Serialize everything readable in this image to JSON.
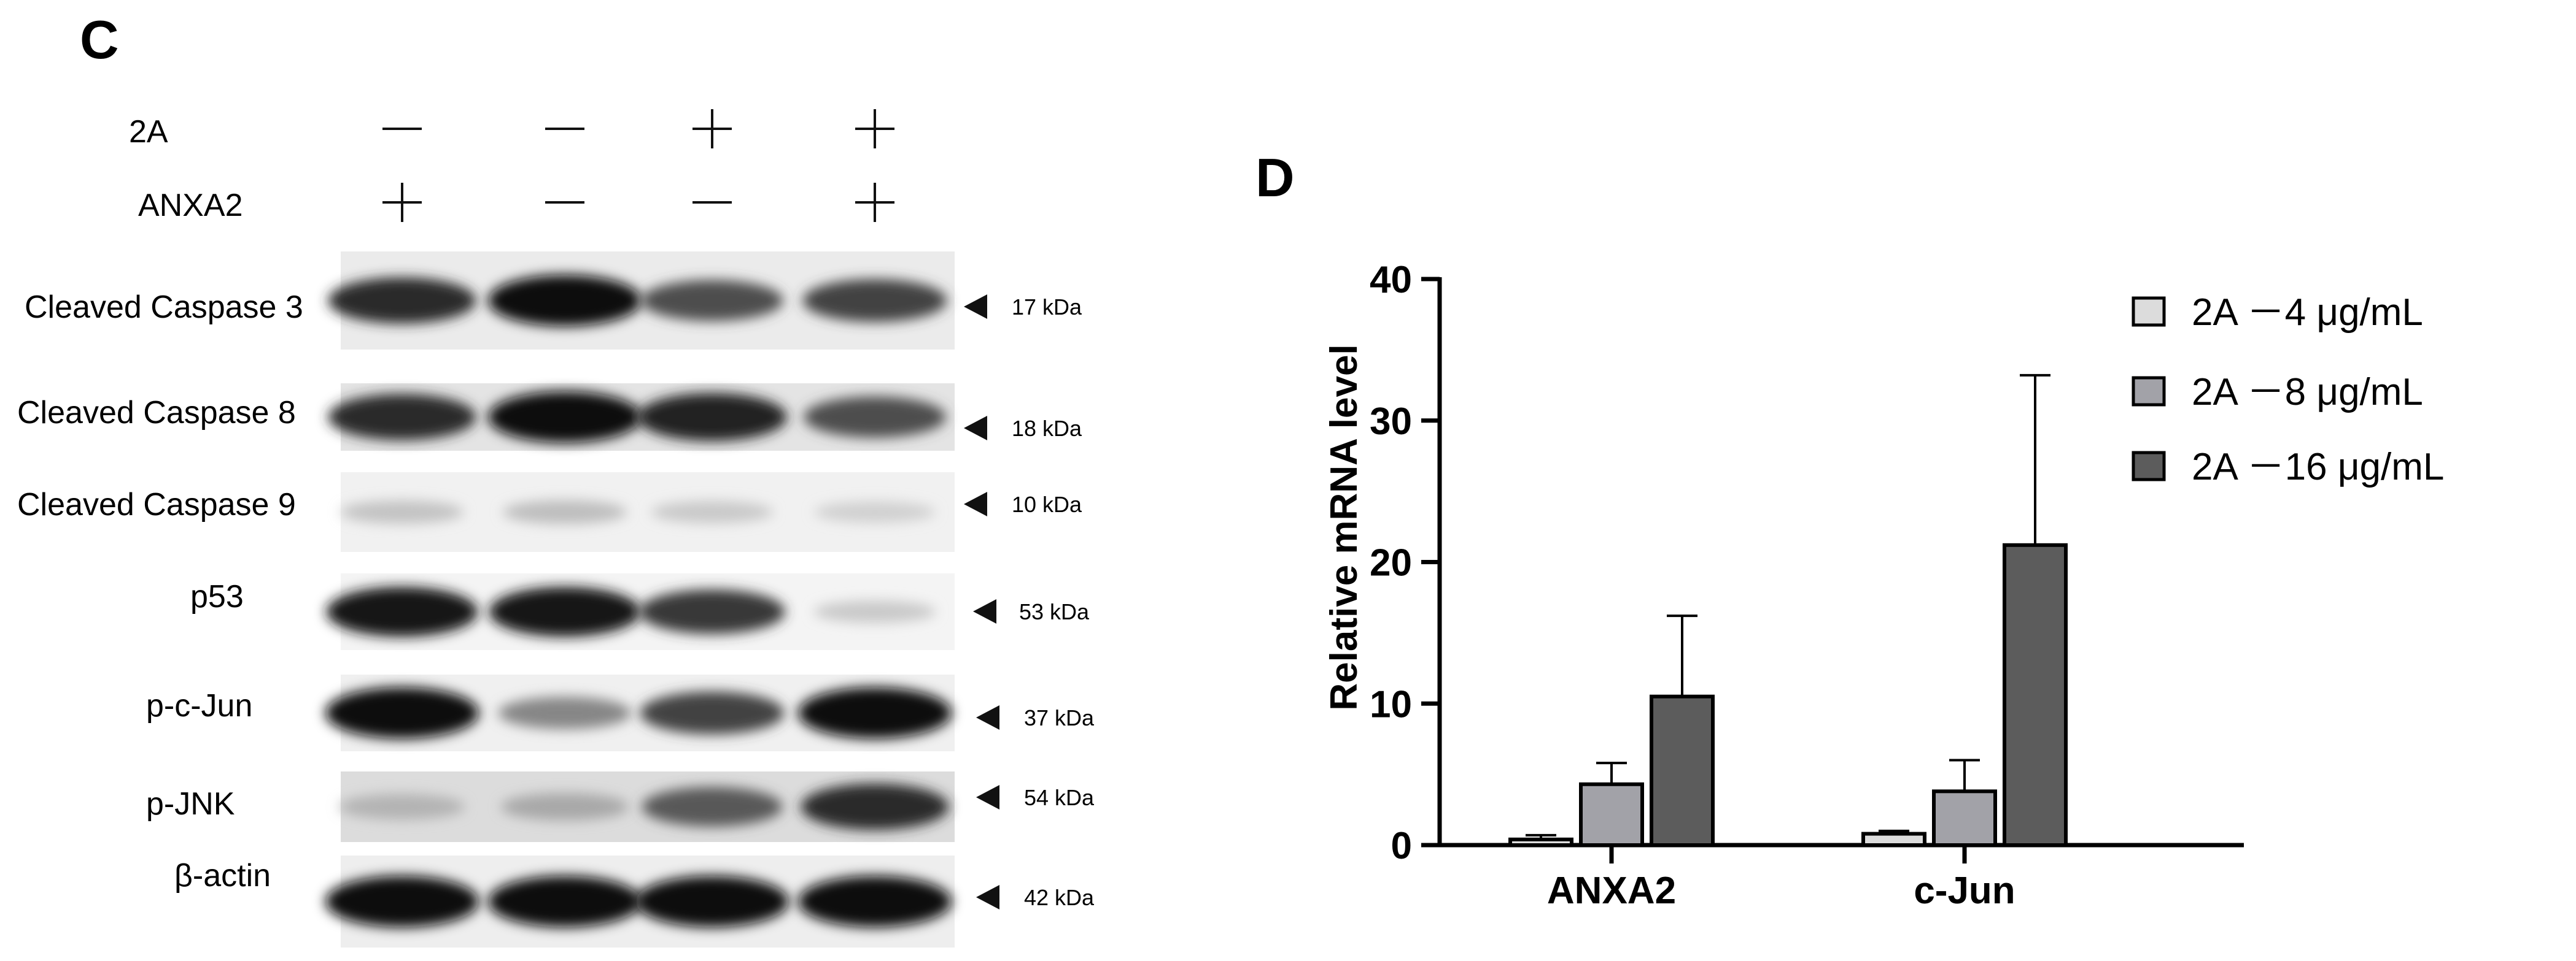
{
  "panel_c": {
    "letter": "C",
    "treatments": [
      {
        "name": "2A",
        "signs": [
          "—",
          "—",
          "+",
          "+"
        ]
      },
      {
        "name": "ANXA2",
        "signs": [
          "+",
          "—",
          "—",
          "+"
        ]
      }
    ],
    "blots": [
      {
        "name": "Cleaved Caspase 3",
        "mw": "17 kDa",
        "bg": "#ebebeb",
        "intensity": [
          0.85,
          1.0,
          0.7,
          0.75
        ]
      },
      {
        "name": "Cleaved Caspase 8",
        "mw": "18 kDa",
        "bg": "#e4e4e4",
        "intensity": [
          0.85,
          1.0,
          0.9,
          0.7
        ]
      },
      {
        "name": "Cleaved Caspase 9",
        "mw": "10 kDa",
        "bg": "#f1f1f1",
        "intensity": [
          0.18,
          0.2,
          0.15,
          0.12
        ]
      },
      {
        "name": "p53",
        "mw": "53 kDa",
        "bg": "#f4f4f4",
        "intensity": [
          0.95,
          0.95,
          0.8,
          0.15
        ]
      },
      {
        "name": "p-c-Jun",
        "mw": "37 kDa",
        "bg": "#f0f0f0",
        "intensity": [
          1.0,
          0.45,
          0.75,
          1.0
        ]
      },
      {
        "name": "p-JNK",
        "mw": "54 kDa",
        "bg": "#dcdcdc",
        "intensity": [
          0.25,
          0.3,
          0.65,
          0.85
        ]
      },
      {
        "name": "β-actin",
        "mw": "42 kDa",
        "bg": "#eeeeee",
        "intensity": [
          1.0,
          1.0,
          1.0,
          1.0
        ]
      }
    ]
  },
  "panel_d": {
    "letter": "D"
  },
  "chart_data": {
    "type": "bar",
    "categories": [
      "ANXA2",
      "c-Jun"
    ],
    "ylabel": "Relative mRNA level",
    "xlabel": "",
    "ylim": [
      0,
      40
    ],
    "yticks": [
      "0",
      "10",
      "20",
      "30",
      "40"
    ],
    "legend_position": "right",
    "series": [
      {
        "name": "2A －4 μg/mL",
        "color": "#dcdcdc",
        "values": [
          0.4,
          0.8
        ],
        "errors": [
          0.3,
          0.2
        ]
      },
      {
        "name": "2A －8 μg/mL",
        "color": "#a2a2a8",
        "values": [
          4.3,
          3.8
        ],
        "errors": [
          1.5,
          2.2
        ]
      },
      {
        "name": "2A －16 μg/mL",
        "color": "#5c5c5c",
        "values": [
          10.5,
          21.2
        ],
        "errors": [
          5.7,
          12.0
        ]
      }
    ]
  }
}
